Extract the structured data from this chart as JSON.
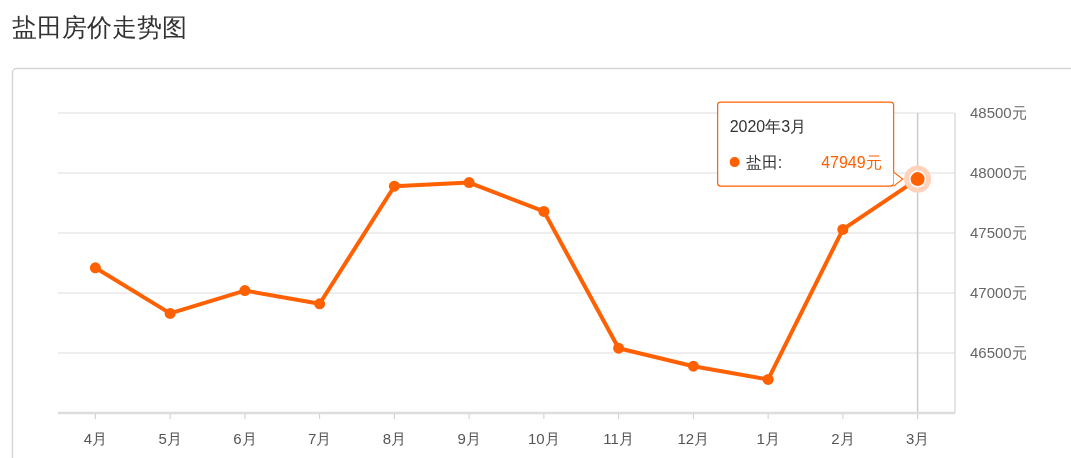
{
  "chart_data": {
    "type": "line",
    "title": "盐田房价走势图",
    "categories": [
      "4月",
      "5月",
      "6月",
      "7月",
      "8月",
      "9月",
      "10月",
      "11月",
      "12月",
      "1月",
      "2月",
      "3月"
    ],
    "series": [
      {
        "name": "盐田:",
        "color": "#ff6102",
        "values": [
          47210,
          46830,
          47020,
          46910,
          47890,
          47920,
          47680,
          46540,
          46390,
          46280,
          47530,
          47949
        ],
        "value_labels": [
          null,
          null,
          null,
          null,
          null,
          null,
          null,
          null,
          null,
          null,
          null,
          "47949元"
        ]
      }
    ],
    "ylim": [
      46000,
      48500
    ],
    "yticks": [
      {
        "value": 46500,
        "label": "46500元"
      },
      {
        "value": 47000,
        "label": "47000元"
      },
      {
        "value": 47500,
        "label": "47500元"
      },
      {
        "value": 48000,
        "label": "48000元"
      },
      {
        "value": 48500,
        "label": "48500元"
      }
    ],
    "grid": "y",
    "marker": "circle",
    "line_style": "solid",
    "annotations": [
      "2020年3月"
    ],
    "ref_lines": [
      {
        "axis": "x",
        "value": "3月",
        "color": "#cccccc"
      }
    ]
  }
}
